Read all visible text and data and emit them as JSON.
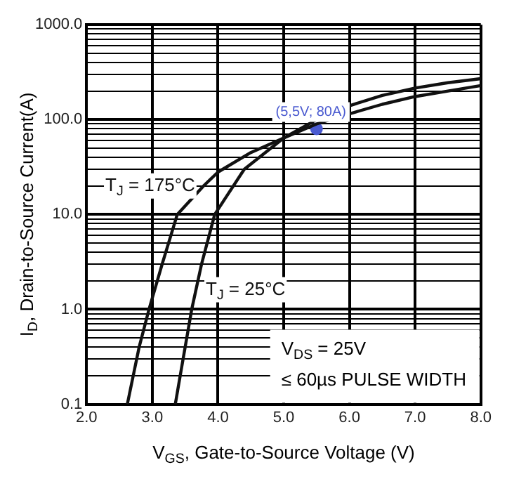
{
  "chart_data": {
    "type": "line",
    "xlabel": "V$_{GS}$, Gate-to-Source Voltage (V)",
    "ylabel": "I$_{D}$, Drain-to-Source Current(A)",
    "xlim": [
      2,
      8
    ],
    "xticks": [
      {
        "value": 2,
        "label": "2.0"
      },
      {
        "value": 3,
        "label": "3.0"
      },
      {
        "value": 4,
        "label": "4.0"
      },
      {
        "value": 5,
        "label": "5.0"
      },
      {
        "value": 6,
        "label": "6.0"
      },
      {
        "value": 7,
        "label": "7.0"
      },
      {
        "value": 8,
        "label": "8.0"
      }
    ],
    "ylim": [
      0.1,
      1000
    ],
    "yticks": [
      {
        "value": 0.1,
        "label": "0.1"
      },
      {
        "value": 0.2,
        "label": null
      },
      {
        "value": 0.3,
        "label": null
      },
      {
        "value": 0.4,
        "label": null
      },
      {
        "value": 0.5,
        "label": null
      },
      {
        "value": 0.6,
        "label": null
      },
      {
        "value": 0.7,
        "label": null
      },
      {
        "value": 0.8,
        "label": null
      },
      {
        "value": 0.9,
        "label": null
      },
      {
        "value": 1,
        "label": "1.0"
      },
      {
        "value": 2,
        "label": null
      },
      {
        "value": 3,
        "label": null
      },
      {
        "value": 4,
        "label": null
      },
      {
        "value": 5,
        "label": null
      },
      {
        "value": 6,
        "label": null
      },
      {
        "value": 7,
        "label": null
      },
      {
        "value": 8,
        "label": null
      },
      {
        "value": 9,
        "label": null
      },
      {
        "value": 10,
        "label": "10.0"
      },
      {
        "value": 20,
        "label": null
      },
      {
        "value": 30,
        "label": null
      },
      {
        "value": 40,
        "label": null
      },
      {
        "value": 50,
        "label": null
      },
      {
        "value": 60,
        "label": null
      },
      {
        "value": 70,
        "label": null
      },
      {
        "value": 80,
        "label": null
      },
      {
        "value": 90,
        "label": null
      },
      {
        "value": 100,
        "label": "100.0"
      },
      {
        "value": 200,
        "label": null
      },
      {
        "value": 300,
        "label": null
      },
      {
        "value": 400,
        "label": null
      },
      {
        "value": 500,
        "label": null
      },
      {
        "value": 600,
        "label": null
      },
      {
        "value": 700,
        "label": null
      },
      {
        "value": 800,
        "label": null
      },
      {
        "value": 900,
        "label": null
      },
      {
        "value": 1000,
        "label": "1000.0"
      }
    ],
    "log": "y",
    "grid": true,
    "legend": false,
    "marker": "none",
    "line_style": "solid",
    "series": [
      {
        "name": "T$_{J}$ = 175°C",
        "color": "#111111",
        "x": [
          2.62,
          2.8,
          2.95,
          3.15,
          3.38,
          3.78,
          4.0,
          4.5,
          5.0,
          5.5,
          6.0,
          6.5,
          7.0,
          7.5,
          8.0
        ],
        "values": [
          0.1,
          0.4,
          1,
          3,
          10,
          20,
          28,
          45,
          64,
          90,
          115,
          145,
          175,
          200,
          228
        ]
      },
      {
        "name": "T$_{J}$ = 25°C",
        "color": "#111111",
        "x": [
          3.35,
          3.5,
          3.6,
          3.75,
          3.95,
          4.4,
          5.0,
          5.5,
          6.0,
          6.5,
          7.0,
          7.5,
          8.0
        ],
        "values": [
          0.1,
          0.4,
          1,
          3,
          10,
          30,
          64,
          100,
          140,
          180,
          215,
          245,
          270
        ]
      },
      {
        "type": "scatter",
        "color": "#4a5ad0",
        "marker": "circle",
        "x": [
          5.5
        ],
        "values": [
          80
        ]
      }
    ],
    "annotations": [
      {
        "text": "(5,5V; 80A)",
        "x": 5.5,
        "y": 80
      },
      "V$_{DS}$ = 25V",
      "≤ 60µs PULSE WIDTH"
    ]
  }
}
